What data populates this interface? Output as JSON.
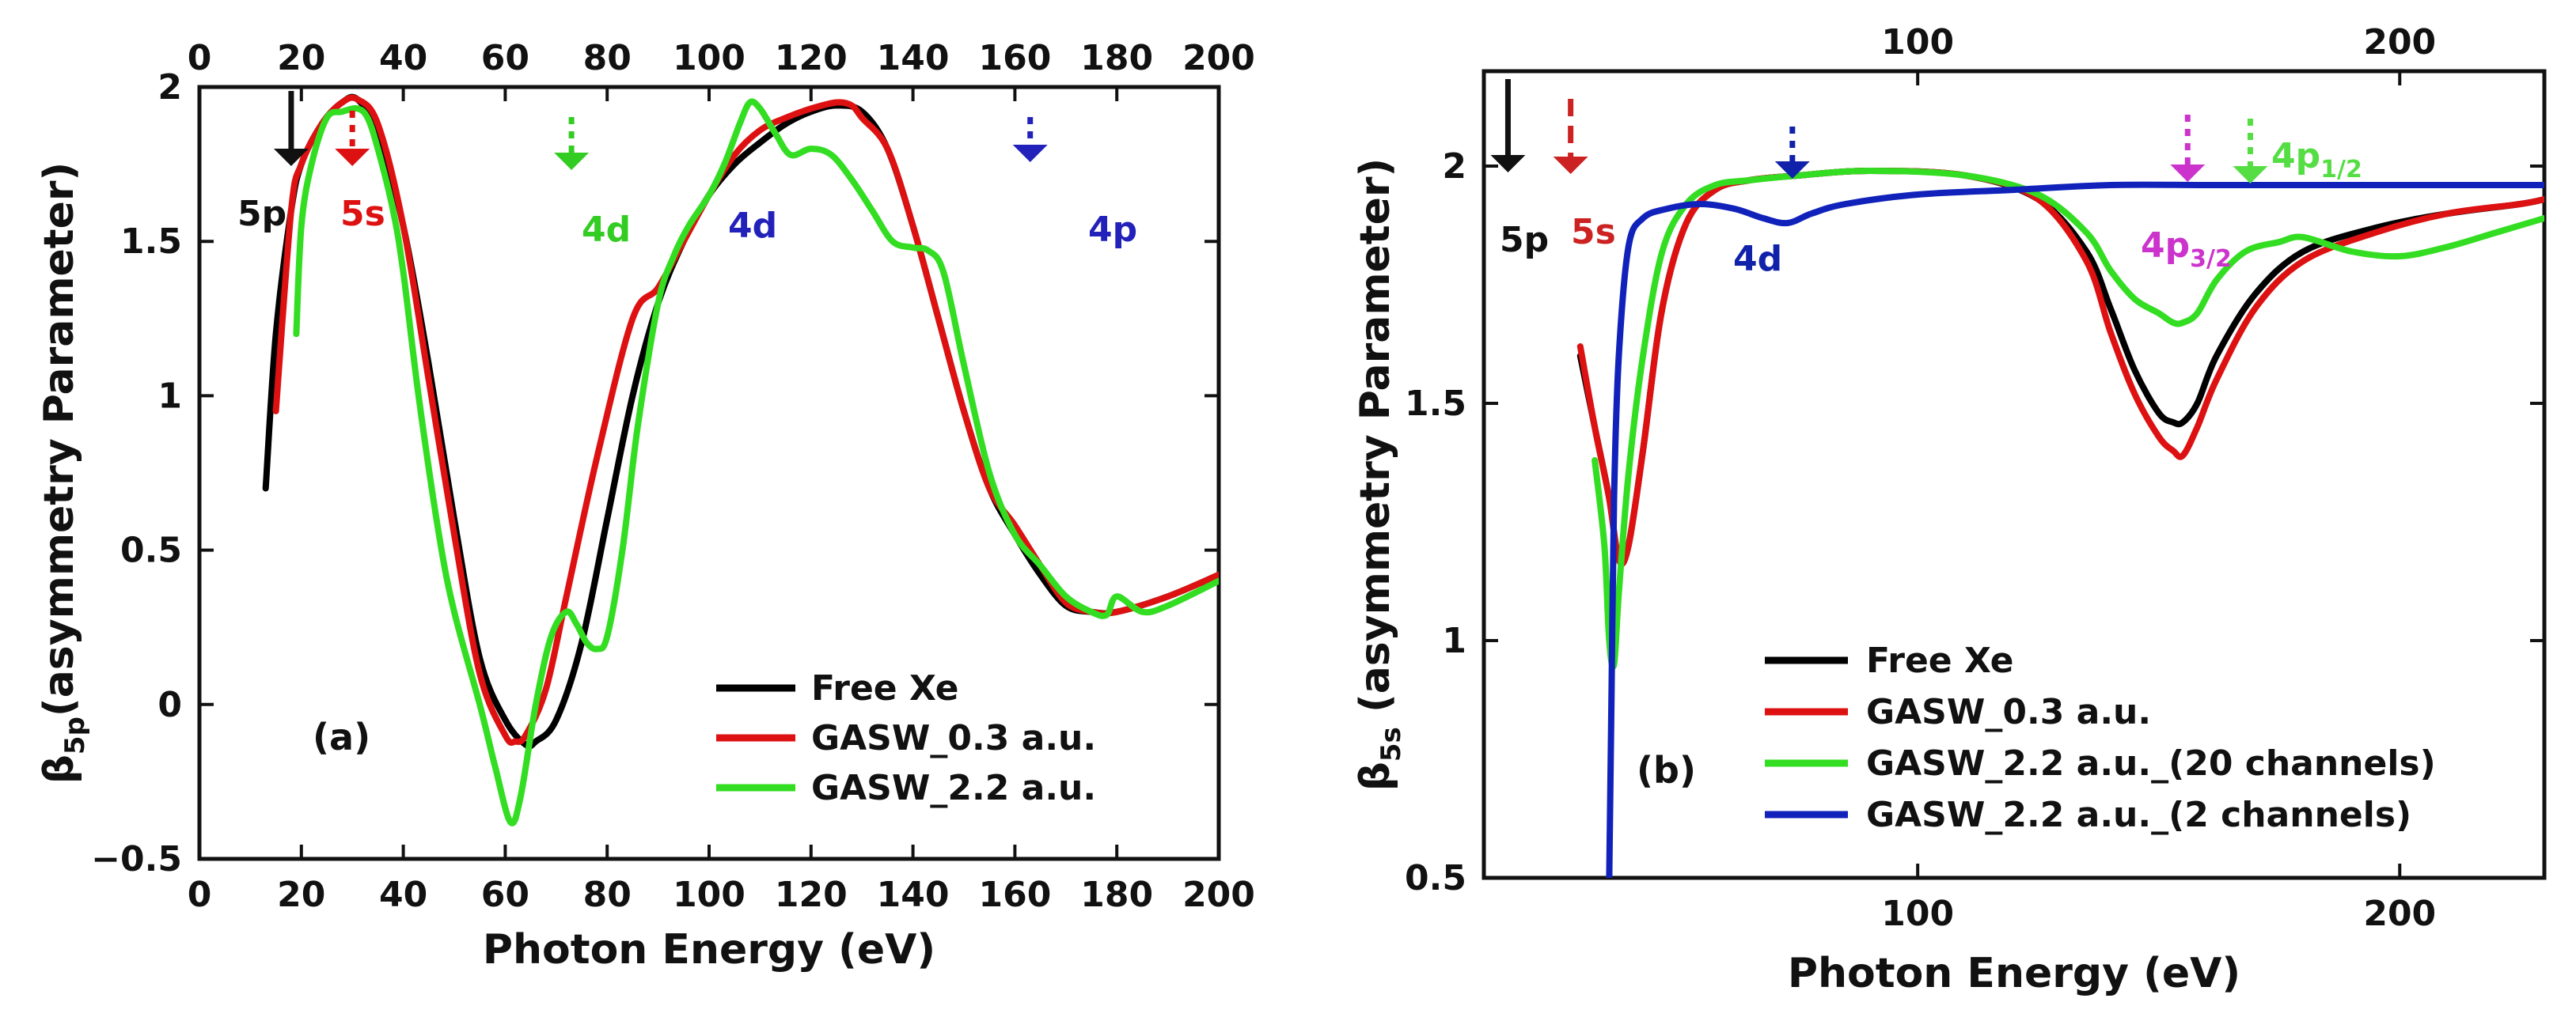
{
  "chart_data": [
    {
      "id": "a",
      "type": "line",
      "panel_label": "(a)",
      "xlabel": "Photon Energy (eV)",
      "ylabel_prefix": "β",
      "ylabel_sub": "5p",
      "ylabel_rest": "(asymmetry Parameter)",
      "xlim": [
        0,
        200
      ],
      "ylim": [
        -0.5,
        2
      ],
      "xticks": [
        0,
        20,
        40,
        60,
        80,
        100,
        120,
        140,
        160,
        180,
        200
      ],
      "xtick_labels": [
        "0",
        "20",
        "40",
        "60",
        "80",
        "100",
        "120",
        "140",
        "160",
        "180",
        "200"
      ],
      "top_tick_labels": [
        "0",
        "20",
        "40",
        "60",
        "80",
        "100",
        "120",
        "140",
        "160",
        "180",
        "200"
      ],
      "yticks": [
        -0.5,
        0,
        0.5,
        1,
        1.5,
        2
      ],
      "ytick_labels": [
        "−0.5",
        "0",
        "0.5",
        "1",
        "1.5",
        "2"
      ],
      "legend_position": "bottom-right",
      "series": [
        {
          "name": "Free Xe",
          "color": "#000000",
          "x": [
            13,
            15,
            18,
            20,
            24,
            28,
            31,
            35,
            40,
            45,
            50,
            55,
            60,
            64,
            66,
            70,
            75,
            80,
            85,
            90,
            95,
            100,
            105,
            110,
            115,
            120,
            125,
            130,
            135,
            140,
            145,
            150,
            155,
            160,
            165,
            170,
            175,
            180,
            190,
            200
          ],
          "y": [
            0.7,
            1.2,
            1.6,
            1.75,
            1.88,
            1.95,
            1.96,
            1.85,
            1.55,
            1.1,
            0.6,
            0.15,
            -0.05,
            -0.13,
            -0.12,
            -0.05,
            0.2,
            0.6,
            1.0,
            1.3,
            1.5,
            1.65,
            1.75,
            1.82,
            1.88,
            1.92,
            1.94,
            1.92,
            1.8,
            1.55,
            1.25,
            0.95,
            0.7,
            0.55,
            0.42,
            0.32,
            0.3,
            0.3,
            0.35,
            0.42
          ]
        },
        {
          "name": "GASW_0.3 a.u.",
          "color": "#dd1111",
          "x": [
            15,
            18,
            20,
            24,
            28,
            31,
            35,
            40,
            45,
            50,
            55,
            60,
            62,
            64,
            68,
            72,
            78,
            85,
            90,
            95,
            100,
            105,
            110,
            115,
            120,
            125,
            128,
            130,
            135,
            140,
            145,
            150,
            155,
            160,
            165,
            170,
            175,
            180,
            190,
            200
          ],
          "y": [
            0.95,
            1.6,
            1.75,
            1.88,
            1.95,
            1.96,
            1.88,
            1.55,
            1.05,
            0.55,
            0.1,
            -0.1,
            -0.12,
            -0.1,
            0.05,
            0.35,
            0.8,
            1.25,
            1.35,
            1.5,
            1.65,
            1.78,
            1.86,
            1.9,
            1.93,
            1.95,
            1.94,
            1.9,
            1.8,
            1.55,
            1.25,
            0.95,
            0.7,
            0.58,
            0.45,
            0.33,
            0.3,
            0.3,
            0.35,
            0.42
          ]
        },
        {
          "name": "GASW_2.2 a.u.",
          "color": "#33dd22",
          "x": [
            19,
            20,
            22,
            25,
            28,
            31,
            33,
            35,
            38,
            40,
            43,
            47,
            50,
            55,
            58,
            61,
            63,
            66,
            69,
            72,
            74,
            76,
            78,
            80,
            83,
            86,
            90,
            93,
            96,
            100,
            103,
            106,
            108,
            110,
            113,
            116,
            120,
            124,
            128,
            132,
            136,
            140,
            143,
            146,
            150,
            155,
            160,
            165,
            170,
            175,
            178,
            180,
            185,
            190,
            200
          ],
          "y": [
            1.2,
            1.55,
            1.75,
            1.9,
            1.92,
            1.93,
            1.9,
            1.8,
            1.6,
            1.4,
            1.0,
            0.55,
            0.3,
            0.0,
            -0.2,
            -0.38,
            -0.3,
            0.0,
            0.22,
            0.3,
            0.26,
            0.2,
            0.18,
            0.22,
            0.5,
            0.9,
            1.3,
            1.45,
            1.55,
            1.65,
            1.75,
            1.88,
            1.95,
            1.93,
            1.85,
            1.78,
            1.8,
            1.78,
            1.7,
            1.6,
            1.5,
            1.48,
            1.47,
            1.4,
            1.1,
            0.75,
            0.55,
            0.45,
            0.35,
            0.3,
            0.29,
            0.35,
            0.3,
            0.32,
            0.4
          ]
        }
      ],
      "annotations": [
        {
          "text": "5p",
          "color": "#111111",
          "arrow_x": 18,
          "style": "solid"
        },
        {
          "text": "5s",
          "color": "#dd1111",
          "arrow_x": 30,
          "style": "dotted"
        },
        {
          "text": "4d",
          "color": "#33cc22",
          "arrow_x": 73,
          "style": "dotted"
        },
        {
          "text": "4d",
          "color": "#2222bb",
          "arrow_x": null,
          "style": "none"
        },
        {
          "text": "4p",
          "color": "#2222bb",
          "arrow_x": 163,
          "style": "dotted"
        }
      ]
    },
    {
      "id": "b",
      "type": "line",
      "panel_label": "(b)",
      "xlabel": "Photon Energy (eV)",
      "ylabel_prefix": "β",
      "ylabel_sub": "5s",
      "ylabel_rest": " (asymmetry Parameter)",
      "xlim": [
        10,
        230
      ],
      "ylim": [
        0.5,
        2.2
      ],
      "xticks": [
        100,
        200
      ],
      "xtick_labels": [
        "100",
        "200"
      ],
      "top_tick_labels": [
        "100",
        "200"
      ],
      "yticks": [
        0.5,
        1,
        1.5,
        2
      ],
      "ytick_labels": [
        "0.5",
        "1",
        "1.5",
        "2"
      ],
      "legend_position": "bottom-right",
      "series": [
        {
          "name": "Free Xe",
          "color": "#000000",
          "x": [
            30,
            33,
            36,
            38,
            40,
            43,
            47,
            52,
            58,
            65,
            75,
            90,
            110,
            125,
            135,
            140,
            145,
            150,
            153,
            155,
            158,
            162,
            170,
            180,
            195,
            210,
            225,
            230
          ],
          "y": [
            1.6,
            1.45,
            1.3,
            1.17,
            1.2,
            1.4,
            1.7,
            1.88,
            1.95,
            1.97,
            1.98,
            1.99,
            1.98,
            1.93,
            1.82,
            1.7,
            1.57,
            1.48,
            1.46,
            1.46,
            1.5,
            1.6,
            1.73,
            1.82,
            1.87,
            1.9,
            1.92,
            1.93
          ]
        },
        {
          "name": "GASW_0.3 a.u.",
          "color": "#dd1111",
          "x": [
            30,
            33,
            36,
            38,
            40,
            43,
            47,
            52,
            58,
            65,
            75,
            90,
            110,
            125,
            135,
            140,
            145,
            150,
            153,
            155,
            158,
            162,
            170,
            180,
            195,
            210,
            225,
            230
          ],
          "y": [
            1.62,
            1.45,
            1.3,
            1.17,
            1.2,
            1.4,
            1.7,
            1.88,
            1.95,
            1.97,
            1.98,
            1.99,
            1.98,
            1.93,
            1.8,
            1.65,
            1.52,
            1.43,
            1.4,
            1.39,
            1.45,
            1.55,
            1.7,
            1.8,
            1.86,
            1.9,
            1.92,
            1.93
          ]
        },
        {
          "name": "GASW_2.2 a.u._(20 channels)",
          "color": "#33dd22",
          "x": [
            33,
            35,
            36,
            37,
            38,
            40,
            43,
            47,
            52,
            58,
            65,
            75,
            90,
            110,
            125,
            135,
            140,
            145,
            150,
            153,
            155,
            158,
            162,
            168,
            175,
            180,
            190,
            200,
            210,
            220,
            230
          ],
          "y": [
            1.38,
            1.2,
            1.0,
            0.95,
            1.1,
            1.35,
            1.6,
            1.82,
            1.92,
            1.96,
            1.97,
            1.98,
            1.99,
            1.98,
            1.94,
            1.86,
            1.78,
            1.72,
            1.69,
            1.67,
            1.67,
            1.69,
            1.76,
            1.82,
            1.84,
            1.85,
            1.82,
            1.81,
            1.83,
            1.86,
            1.89
          ]
        },
        {
          "name": "GASW_2.2 a.u._(2 channels)",
          "color": "#1122bb",
          "x": [
            36,
            36.5,
            37,
            38,
            40,
            43,
            48,
            55,
            62,
            68,
            73,
            78,
            85,
            100,
            120,
            140,
            160,
            180,
            200,
            230
          ],
          "y": [
            0.5,
            0.9,
            1.3,
            1.6,
            1.83,
            1.89,
            1.91,
            1.92,
            1.91,
            1.89,
            1.88,
            1.9,
            1.92,
            1.94,
            1.95,
            1.96,
            1.96,
            1.96,
            1.96,
            1.96
          ]
        }
      ],
      "annotations": [
        {
          "text": "5p",
          "color": "#111111",
          "arrow_x": 15,
          "style": "solid"
        },
        {
          "text": "5s",
          "color": "#cc2222",
          "arrow_x": 28,
          "style": "dashed"
        },
        {
          "text": "4d",
          "color": "#1122aa",
          "arrow_x": 74,
          "style": "dotted"
        },
        {
          "text": "4p",
          "sub": "3/2",
          "color": "#cc33cc",
          "arrow_x": 156,
          "style": "dotted"
        },
        {
          "text": "4p",
          "sub": "1/2",
          "color": "#55dd44",
          "arrow_x": 169,
          "style": "dotted"
        }
      ]
    }
  ]
}
